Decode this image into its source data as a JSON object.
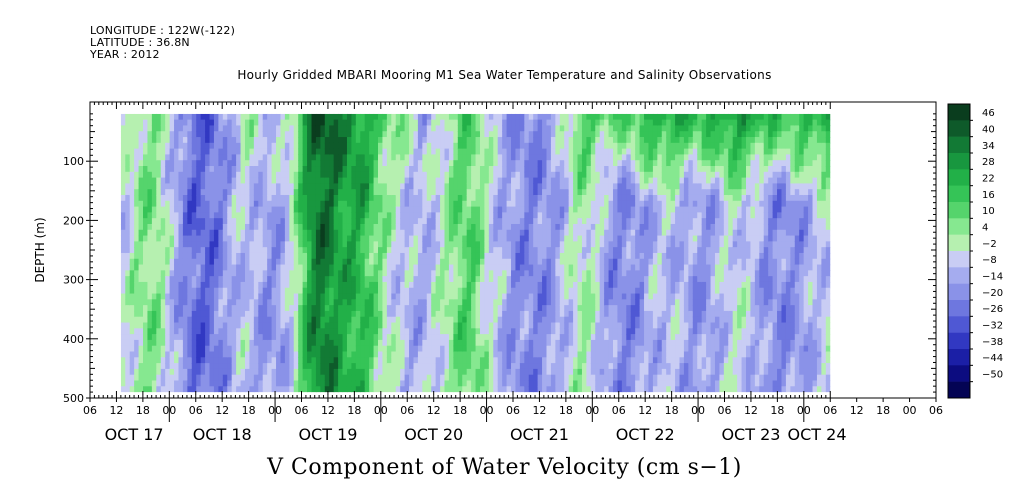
{
  "header": {
    "longitude": "LONGITUDE : 122W(-122)",
    "latitude": "LATITUDE : 36.8N",
    "year": "YEAR : 2012"
  },
  "chart_data": {
    "type": "heatmap",
    "title": "Hourly Gridded MBARI Mooring M1 Sea Water Temperature and Salinity Observations",
    "variable_label": "V Component of Water Velocity (cm s−1)",
    "ylabel": "DEPTH (m)",
    "y_axis": {
      "ylim": [
        500,
        0
      ],
      "inverted": true,
      "ticks": [
        100,
        200,
        300,
        400,
        500
      ]
    },
    "x_axis": {
      "hour_ticks": [
        "06",
        "12",
        "18",
        "00",
        "06",
        "12",
        "18",
        "00",
        "06",
        "12",
        "18",
        "00",
        "06",
        "12",
        "18",
        "00",
        "06",
        "12",
        "18",
        "00",
        "06",
        "12",
        "18",
        "00",
        "06",
        "12",
        "18",
        "00",
        "06",
        "12",
        "18",
        "00",
        "06"
      ],
      "date_labels": [
        "OCT 17",
        "OCT 18",
        "OCT 19",
        "OCT 20",
        "OCT 21",
        "OCT 22",
        "OCT 23",
        "OCT 24"
      ]
    },
    "data_extent": {
      "time_start": "2012-10-17 13:00",
      "time_end": "2012-10-24 06:00",
      "depth_top": 20,
      "depth_bottom": 490
    },
    "colorbar": {
      "levels": [
        "46",
        "40",
        "34",
        "28",
        "22",
        "16",
        "10",
        "4",
        "-2",
        "-8",
        "-14",
        "-20",
        "-26",
        "-32",
        "-38",
        "-44",
        "-50"
      ],
      "colors": [
        "#0a3d1e",
        "#0e5a2a",
        "#127a35",
        "#18973f",
        "#22b048",
        "#35c457",
        "#55d46c",
        "#86e890",
        "#b6f0b0",
        "#c9cdf4",
        "#a5acef",
        "#8a92e8",
        "#6e77df",
        "#4f58d4",
        "#3138c2",
        "#1b1fa6",
        "#0c0c80",
        "#040454"
      ],
      "orientation": "vertical",
      "placement": "right"
    },
    "field_notes": {
      "summary": "Alternating vertical bands of northward (green) and southward (blue) velocity; strong northward flow near surface after Oct 21; strong southward bands near Oct 18 and Oct 21–22"
    }
  }
}
